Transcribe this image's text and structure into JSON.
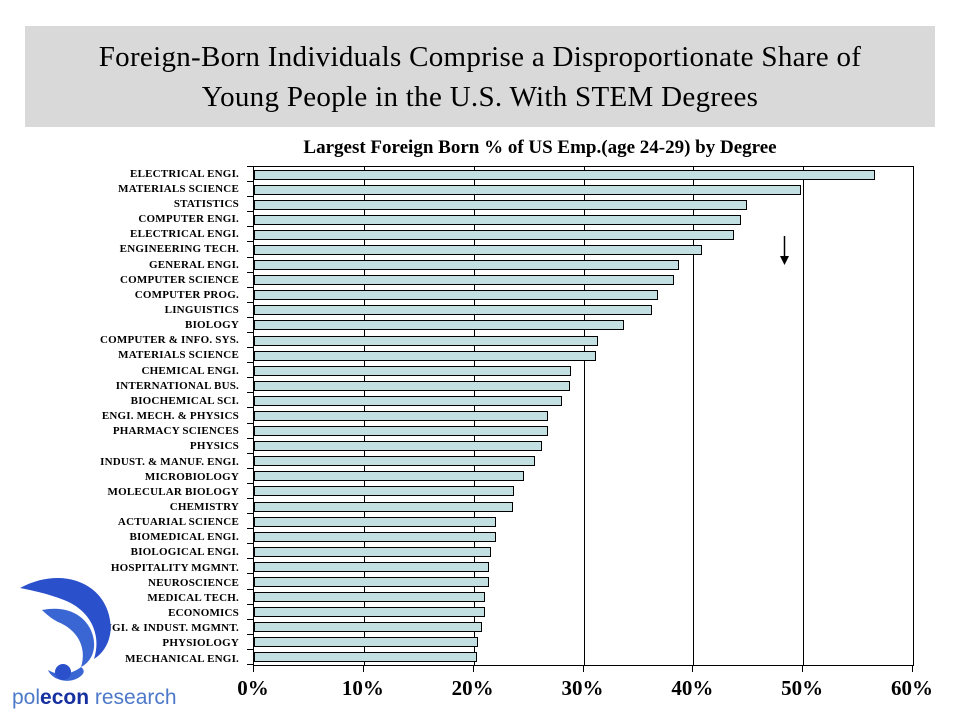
{
  "slide": {
    "title_line1": "Foreign-Born Individuals Comprise a Disproportionate Share of",
    "title_line2": "Young People in the U.S. With STEM Degrees"
  },
  "logo": {
    "name_part1": "pol",
    "name_part2": "econ",
    "name_part3": " research",
    "mark_color_dark": "#2a50cc",
    "mark_color_mid": "#3a66d4"
  },
  "chart_data": {
    "type": "bar",
    "orientation": "horizontal",
    "title": "Largest Foreign Born % of US Emp.(age 24-29) by Degree",
    "categories": [
      "ELECTRICAL ENGI.",
      "MATERIALS SCIENCE",
      "STATISTICS",
      "COMPUTER ENGI.",
      "ELECTRICAL ENGI.",
      "ENGINEERING TECH.",
      "GENERAL ENGI.",
      "COMPUTER SCIENCE",
      "COMPUTER PROG.",
      "LINGUISTICS",
      "BIOLOGY",
      "COMPUTER & INFO. SYS.",
      "MATERIALS SCIENCE",
      "CHEMICAL ENGI.",
      "INTERNATIONAL BUS.",
      "BIOCHEMICAL SCI.",
      "ENGI. MECH. & PHYSICS",
      "PHARMACY  SCIENCES",
      "PHYSICS",
      "INDUST. & MANUF. ENGI.",
      "MICROBIOLOGY",
      "MOLECULAR BIOLOGY",
      "CHEMISTRY",
      "ACTUARIAL SCIENCE",
      "BIOMEDICAL ENGI.",
      "BIOLOGICAL ENGI.",
      "HOSPITALITY MGMNT.",
      "NEUROSCIENCE",
      "MEDICAL TECH.",
      "ECONOMICS",
      "ENGI. & INDUST. MGMNT.",
      "PHYSIOLOGY",
      "MECHANICAL ENGI."
    ],
    "values": [
      56.5,
      49.8,
      44.9,
      44.3,
      43.7,
      40.8,
      38.7,
      38.2,
      36.8,
      36.2,
      33.7,
      31.3,
      31.1,
      28.9,
      28.8,
      28.0,
      26.8,
      26.8,
      26.2,
      25.6,
      24.6,
      23.7,
      23.6,
      22.0,
      22.0,
      21.6,
      21.4,
      21.4,
      21.0,
      21.0,
      20.8,
      20.4,
      20.3
    ],
    "xlabel": "",
    "ylabel": "",
    "xlim": [
      0,
      60
    ],
    "x_ticks": [
      {
        "value": 0,
        "label": "0%"
      },
      {
        "value": 10,
        "label": "10%"
      },
      {
        "value": 20,
        "label": "20%"
      },
      {
        "value": 30,
        "label": "30%"
      },
      {
        "value": 40,
        "label": "40%"
      },
      {
        "value": 50,
        "label": "50%"
      },
      {
        "value": 60,
        "label": "60%"
      }
    ],
    "grid": true,
    "legend": false,
    "bar_color": "#c2dfe2",
    "bar_border_color": "#000000",
    "annotation": {
      "glyph": "down-arrow",
      "x_percent": 48.3,
      "y_center_row": 6
    }
  }
}
